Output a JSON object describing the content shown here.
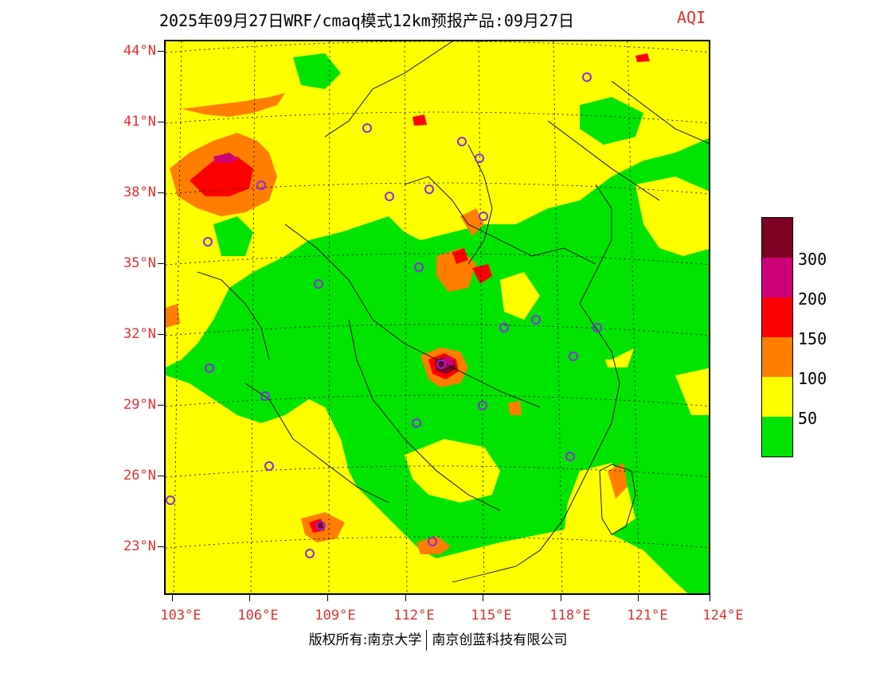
{
  "header": {
    "title": "2025年09月27日WRF/cmaq模式12km预报产品:09月27日",
    "product": "AQI"
  },
  "axes": {
    "lat_labels": [
      "44°N",
      "41°N",
      "38°N",
      "35°N",
      "32°N",
      "29°N",
      "26°N",
      "23°N"
    ],
    "lon_labels": [
      "103°E",
      "106°E",
      "109°E",
      "112°E",
      "115°E",
      "118°E",
      "121°E",
      "124°E"
    ]
  },
  "legend": {
    "labels": [
      "300",
      "200",
      "150",
      "100",
      "50"
    ],
    "colors": [
      "#7e0023",
      "#cc0077",
      "#ff0000",
      "#ff7e00",
      "#ffff00",
      "#00e400"
    ]
  },
  "footer": {
    "left": "版权所有:南京大学",
    "right": "南京创蓝科技有限公司"
  },
  "colors": {
    "good": "#00e400",
    "moderate": "#ffff00",
    "usg": "#ff7e00",
    "unhealthy": "#ff0000",
    "very_unhealthy": "#cc0077",
    "hazardous": "#7e0023",
    "station": "#8a2be2",
    "label": "#e03030"
  }
}
